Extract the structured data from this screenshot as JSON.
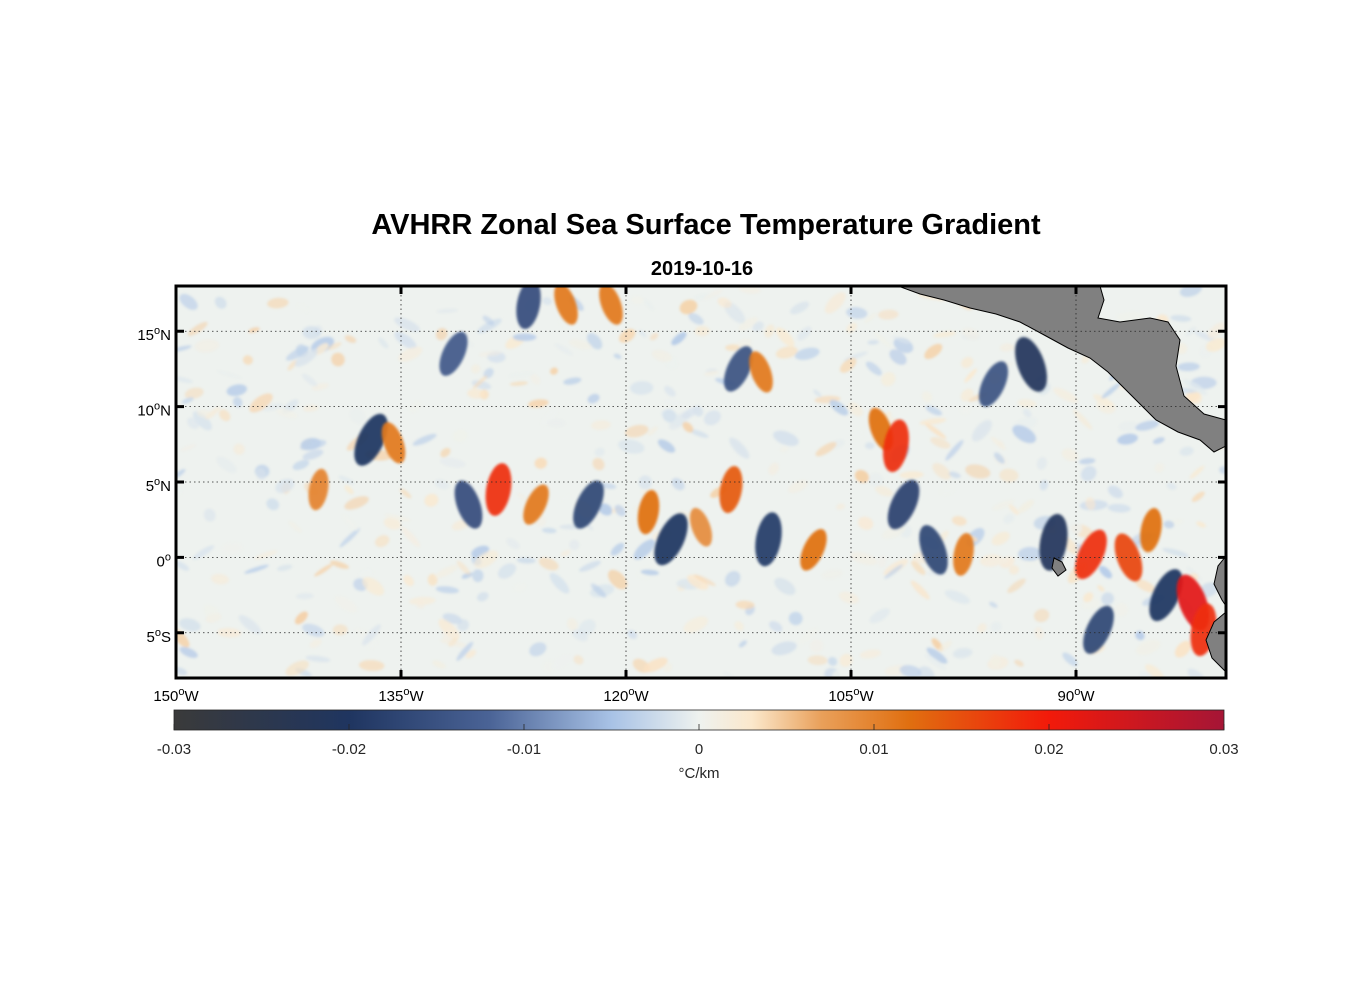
{
  "chart_data": {
    "type": "heatmap",
    "title": "AVHRR Zonal Sea Surface Temperature Gradient",
    "subtitle": "2019-10-16",
    "lon_range": [
      -150,
      -80
    ],
    "lat_range": [
      -8,
      18
    ],
    "x_ticks": [
      {
        "value": -150,
        "deg": "150",
        "suffix": "W"
      },
      {
        "value": -135,
        "deg": "135",
        "suffix": "W"
      },
      {
        "value": -120,
        "deg": "120",
        "suffix": "W"
      },
      {
        "value": -105,
        "deg": "105",
        "suffix": "W"
      },
      {
        "value": -90,
        "deg": "90",
        "suffix": "W"
      }
    ],
    "y_ticks": [
      {
        "value": 15,
        "deg": "15",
        "suffix": "N"
      },
      {
        "value": 10,
        "deg": "10",
        "suffix": "N"
      },
      {
        "value": 5,
        "deg": "5",
        "suffix": "N"
      },
      {
        "value": 0,
        "deg": "0",
        "suffix": ""
      },
      {
        "value": -5,
        "deg": "5",
        "suffix": "S"
      }
    ],
    "degree_mark": "o",
    "grid": true,
    "land_color": "#808080",
    "colorbar": {
      "range": [
        -0.03,
        0.03
      ],
      "ticks": [
        {
          "value": -0.03,
          "label": "-0.03"
        },
        {
          "value": -0.02,
          "label": "-0.02"
        },
        {
          "value": -0.01,
          "label": "-0.01"
        },
        {
          "value": 0,
          "label": "0"
        },
        {
          "value": 0.01,
          "label": "0.01"
        },
        {
          "value": 0.02,
          "label": "0.02"
        },
        {
          "value": 0.03,
          "label": "0.03"
        }
      ],
      "label": "°C/km",
      "stops": [
        {
          "value": -0.03,
          "color": "#3a3a3a"
        },
        {
          "value": -0.02,
          "color": "#1f3560"
        },
        {
          "value": -0.012,
          "color": "#4a6396"
        },
        {
          "value": -0.005,
          "color": "#a8c2e6"
        },
        {
          "value": 0,
          "color": "#eef2ef"
        },
        {
          "value": 0.003,
          "color": "#fbe8cc"
        },
        {
          "value": 0.007,
          "color": "#e9a05a"
        },
        {
          "value": 0.012,
          "color": "#e06f10"
        },
        {
          "value": 0.02,
          "color": "#f21a0a"
        },
        {
          "value": 0.03,
          "color": "#a51536"
        }
      ]
    },
    "features": [
      {
        "lon": -137.0,
        "lat": 7.8,
        "value": -0.02
      },
      {
        "lon": -135.5,
        "lat": 7.6,
        "value": 0.011
      },
      {
        "lon": -140.5,
        "lat": 4.5,
        "value": 0.01
      },
      {
        "lon": -131.5,
        "lat": 13.5,
        "value": -0.014
      },
      {
        "lon": -130.5,
        "lat": 3.5,
        "value": -0.016
      },
      {
        "lon": -128.5,
        "lat": 4.5,
        "value": 0.018
      },
      {
        "lon": -126.0,
        "lat": 3.5,
        "value": 0.011
      },
      {
        "lon": -124.0,
        "lat": 16.8,
        "value": 0.011
      },
      {
        "lon": -126.5,
        "lat": 16.8,
        "value": -0.016
      },
      {
        "lon": -122.5,
        "lat": 3.5,
        "value": -0.017
      },
      {
        "lon": -121.0,
        "lat": 16.8,
        "value": 0.011
      },
      {
        "lon": -118.5,
        "lat": 3.0,
        "value": 0.012
      },
      {
        "lon": -117.0,
        "lat": 1.2,
        "value": -0.02
      },
      {
        "lon": -115.0,
        "lat": 2.0,
        "value": 0.009
      },
      {
        "lon": -113.0,
        "lat": 4.5,
        "value": 0.014
      },
      {
        "lon": -112.5,
        "lat": 12.5,
        "value": -0.015
      },
      {
        "lon": -111.0,
        "lat": 12.3,
        "value": 0.011
      },
      {
        "lon": -110.5,
        "lat": 1.2,
        "value": -0.019
      },
      {
        "lon": -107.5,
        "lat": 0.5,
        "value": 0.012
      },
      {
        "lon": -103.0,
        "lat": 8.5,
        "value": 0.012
      },
      {
        "lon": -102.0,
        "lat": 7.4,
        "value": 0.018
      },
      {
        "lon": -101.5,
        "lat": 3.5,
        "value": -0.018
      },
      {
        "lon": -99.5,
        "lat": 0.5,
        "value": -0.017
      },
      {
        "lon": -97.5,
        "lat": 0.2,
        "value": 0.011
      },
      {
        "lon": -95.5,
        "lat": 11.5,
        "value": -0.015
      },
      {
        "lon": -93.0,
        "lat": 12.8,
        "value": -0.021
      },
      {
        "lon": -91.5,
        "lat": 1.0,
        "value": -0.021
      },
      {
        "lon": -89.0,
        "lat": 0.2,
        "value": 0.018
      },
      {
        "lon": -86.5,
        "lat": 0.0,
        "value": 0.016
      },
      {
        "lon": -85.0,
        "lat": 1.8,
        "value": 0.012
      },
      {
        "lon": -84.0,
        "lat": -2.5,
        "value": -0.02
      },
      {
        "lon": -82.2,
        "lat": -3.0,
        "value": 0.022
      },
      {
        "lon": -81.5,
        "lat": -4.8,
        "value": 0.018
      },
      {
        "lon": -88.5,
        "lat": -4.8,
        "value": -0.017
      }
    ]
  }
}
